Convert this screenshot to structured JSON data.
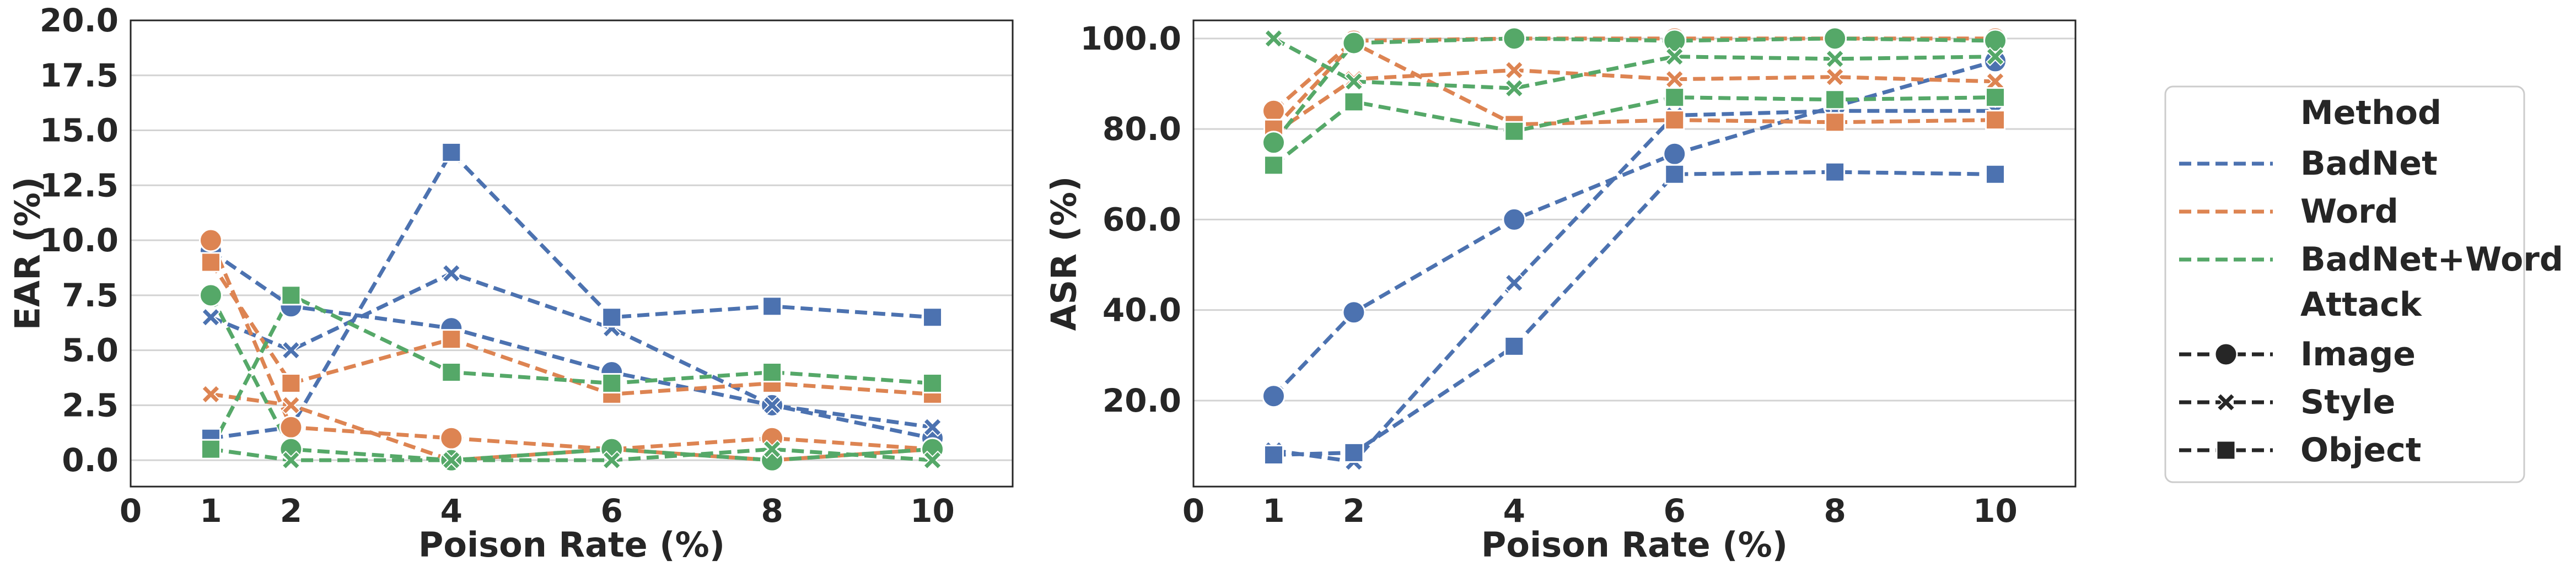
{
  "figure_title": "",
  "chart_data": [
    {
      "type": "line",
      "title": "",
      "xlabel": "Poison Rate (%)",
      "ylabel": "EAR (%)",
      "xlim": [
        0,
        11
      ],
      "ylim": [
        -1.2,
        20
      ],
      "x_ticks": [
        0,
        1,
        2,
        4,
        6,
        8,
        10
      ],
      "x_tick_labels": [
        "0",
        "1",
        "2",
        "4",
        "6",
        "8",
        "10"
      ],
      "y_ticks": [
        0,
        2.5,
        5,
        7.5,
        10,
        12.5,
        15,
        17.5,
        20
      ],
      "y_tick_labels": [
        "0.0",
        "2.5",
        "5.0",
        "7.5",
        "10.0",
        "12.5",
        "15.0",
        "17.5",
        "20.0"
      ],
      "grid": "horizontal",
      "series": [
        {
          "name": "BadNet - Image",
          "method": "BadNet",
          "attack": "Image",
          "color": "#4c72b0",
          "marker": "circle",
          "x": [
            1,
            2,
            4,
            6,
            8,
            10
          ],
          "y": [
            9.5,
            7.0,
            6.0,
            4.0,
            2.5,
            1.0
          ]
        },
        {
          "name": "BadNet - Style",
          "method": "BadNet",
          "attack": "Style",
          "color": "#4c72b0",
          "marker": "x",
          "x": [
            1,
            2,
            4,
            6,
            8,
            10
          ],
          "y": [
            6.5,
            5.0,
            8.5,
            6.0,
            2.5,
            1.5
          ]
        },
        {
          "name": "BadNet - Object",
          "method": "BadNet",
          "attack": "Object",
          "color": "#4c72b0",
          "marker": "square",
          "x": [
            1,
            2,
            4,
            6,
            8,
            10
          ],
          "y": [
            1.0,
            1.5,
            14.0,
            6.5,
            7.0,
            6.5
          ]
        },
        {
          "name": "Word - Image",
          "method": "Word",
          "attack": "Image",
          "color": "#dd8452",
          "marker": "circle",
          "x": [
            1,
            2,
            4,
            6,
            8,
            10
          ],
          "y": [
            10.0,
            1.5,
            1.0,
            0.5,
            1.0,
            0.5
          ]
        },
        {
          "name": "Word - Style",
          "method": "Word",
          "attack": "Style",
          "color": "#dd8452",
          "marker": "x",
          "x": [
            1,
            2,
            4,
            6,
            8,
            10
          ],
          "y": [
            3.0,
            2.5,
            0.0,
            0.5,
            0.0,
            0.5
          ]
        },
        {
          "name": "Word - Object",
          "method": "Word",
          "attack": "Object",
          "color": "#dd8452",
          "marker": "square",
          "x": [
            1,
            2,
            4,
            6,
            8,
            10
          ],
          "y": [
            9.0,
            3.5,
            5.5,
            3.0,
            3.5,
            3.0
          ]
        },
        {
          "name": "BadNet+Word - Image",
          "method": "BadNet+Word",
          "attack": "Image",
          "color": "#55a868",
          "marker": "circle",
          "x": [
            1,
            2,
            4,
            6,
            8,
            10
          ],
          "y": [
            7.5,
            0.5,
            0.0,
            0.5,
            0.0,
            0.5
          ]
        },
        {
          "name": "BadNet+Word - Style",
          "method": "BadNet+Word",
          "attack": "Style",
          "color": "#55a868",
          "marker": "x",
          "x": [
            1,
            2,
            4,
            6,
            8,
            10
          ],
          "y": [
            0.5,
            0.0,
            0.0,
            0.0,
            0.5,
            0.0
          ]
        },
        {
          "name": "BadNet+Word - Object",
          "method": "BadNet+Word",
          "attack": "Object",
          "color": "#55a868",
          "marker": "square",
          "x": [
            1,
            2,
            4,
            6,
            8,
            10
          ],
          "y": [
            0.5,
            7.5,
            4.0,
            3.5,
            4.0,
            3.5
          ]
        }
      ]
    },
    {
      "type": "line",
      "title": "",
      "xlabel": "Poison Rate (%)",
      "ylabel": "ASR (%)",
      "xlim": [
        0,
        11
      ],
      "ylim": [
        1,
        104
      ],
      "x_ticks": [
        0,
        1,
        2,
        4,
        6,
        8,
        10
      ],
      "x_tick_labels": [
        "0",
        "1",
        "2",
        "4",
        "6",
        "8",
        "10"
      ],
      "y_ticks": [
        20,
        40,
        60,
        80,
        100
      ],
      "y_tick_labels": [
        "20.0",
        "40.0",
        "60.0",
        "80.0",
        "100.0"
      ],
      "grid": "horizontal",
      "series": [
        {
          "name": "BadNet - Image",
          "method": "BadNet",
          "attack": "Image",
          "color": "#4c72b0",
          "marker": "circle",
          "x": [
            1,
            2,
            4,
            6,
            8,
            10
          ],
          "y": [
            21,
            39.5,
            60,
            74.5,
            85,
            95
          ]
        },
        {
          "name": "BadNet - Style",
          "method": "BadNet",
          "attack": "Style",
          "color": "#4c72b0",
          "marker": "x",
          "x": [
            1,
            2,
            4,
            6,
            8,
            10
          ],
          "y": [
            9,
            6.5,
            46,
            83,
            84,
            84
          ]
        },
        {
          "name": "BadNet - Object",
          "method": "BadNet",
          "attack": "Object",
          "color": "#4c72b0",
          "marker": "square",
          "x": [
            1,
            2,
            4,
            6,
            8,
            10
          ],
          "y": [
            8,
            8.5,
            32,
            70,
            70.5,
            70
          ]
        },
        {
          "name": "Word - Image",
          "method": "Word",
          "attack": "Image",
          "color": "#dd8452",
          "marker": "circle",
          "x": [
            1,
            2,
            4,
            6,
            8,
            10
          ],
          "y": [
            84,
            99.5,
            100,
            100,
            100,
            100
          ]
        },
        {
          "name": "Word - Style",
          "method": "Word",
          "attack": "Style",
          "color": "#dd8452",
          "marker": "x",
          "x": [
            1,
            2,
            4,
            6,
            8,
            10
          ],
          "y": [
            79,
            91,
            93,
            91,
            91.5,
            90.5
          ]
        },
        {
          "name": "Word - Object",
          "method": "Word",
          "attack": "Object",
          "color": "#dd8452",
          "marker": "square",
          "x": [
            1,
            2,
            4,
            6,
            8,
            10
          ],
          "y": [
            80,
            99,
            81,
            82,
            81.5,
            82
          ]
        },
        {
          "name": "BadNet+Word - Image",
          "method": "BadNet+Word",
          "attack": "Image",
          "color": "#55a868",
          "marker": "circle",
          "x": [
            1,
            2,
            4,
            6,
            8,
            10
          ],
          "y": [
            77,
            99,
            100,
            99.5,
            100,
            99.5
          ]
        },
        {
          "name": "BadNet+Word - Style",
          "method": "BadNet+Word",
          "attack": "Style",
          "color": "#55a868",
          "marker": "x",
          "x": [
            1,
            2,
            4,
            6,
            8,
            10
          ],
          "y": [
            100,
            90.5,
            89,
            96,
            95.5,
            96
          ]
        },
        {
          "name": "BadNet+Word - Object",
          "method": "BadNet+Word",
          "attack": "Object",
          "color": "#55a868",
          "marker": "square",
          "x": [
            1,
            2,
            4,
            6,
            8,
            10
          ],
          "y": [
            72,
            86,
            79.5,
            87,
            86.5,
            87
          ]
        }
      ]
    }
  ],
  "legend": {
    "placement": "right, outside plots",
    "method_title": "Method",
    "methods": [
      {
        "label": "BadNet",
        "color": "#4c72b0"
      },
      {
        "label": "Word",
        "color": "#dd8452"
      },
      {
        "label": "BadNet+Word",
        "color": "#55a868"
      }
    ],
    "attack_title": "Attack",
    "attacks": [
      {
        "label": "Image",
        "marker": "circle"
      },
      {
        "label": "Style",
        "marker": "x"
      },
      {
        "label": "Object",
        "marker": "square"
      }
    ]
  }
}
